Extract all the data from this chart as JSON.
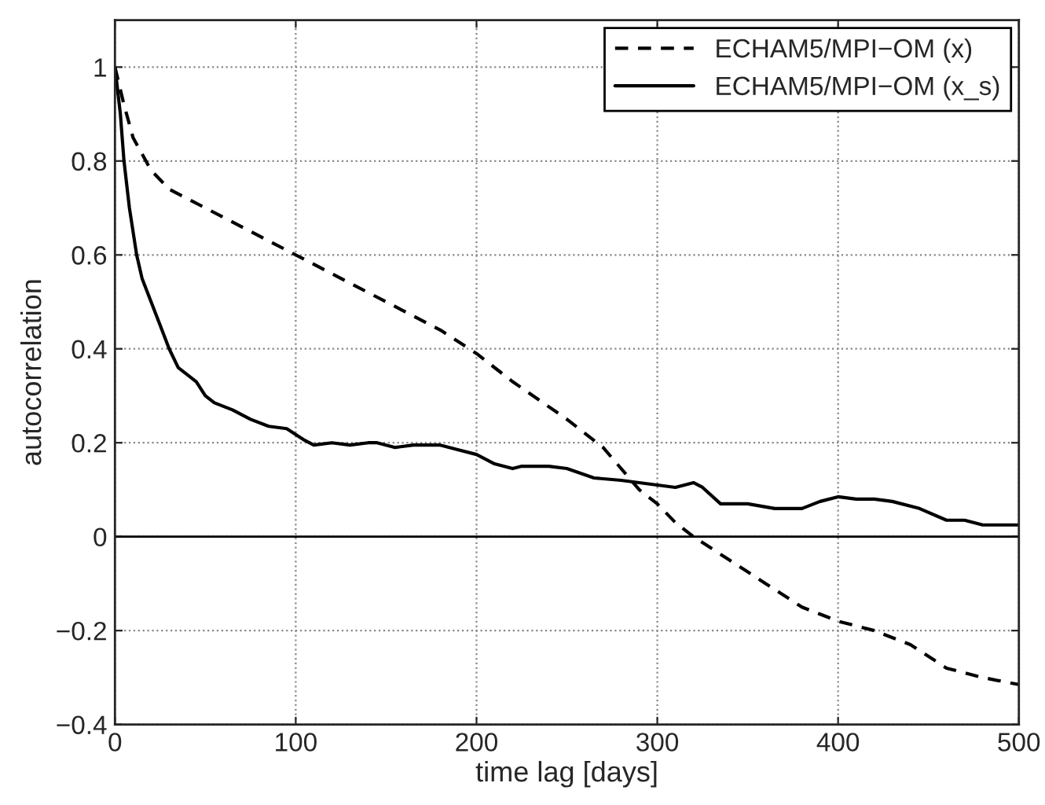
{
  "chart_data": {
    "type": "line",
    "xlabel": "time lag [days]",
    "ylabel": "autocorrelation",
    "xlim": [
      0,
      500
    ],
    "xticks": [
      0,
      100,
      200,
      300,
      400,
      500
    ],
    "ylim": [
      -0.4,
      1.1
    ],
    "yticks": [
      {
        "value": -0.4,
        "label": "−0.4"
      },
      {
        "value": -0.2,
        "label": "−0.2"
      },
      0,
      0.2,
      0.4,
      0.6,
      0.8,
      1
    ],
    "grid": true,
    "legend": "top right",
    "ref_lines": [
      {
        "axis": "y",
        "value": 0,
        "color": "#000000",
        "line_style": "solid"
      }
    ],
    "series": [
      {
        "name": "ECHAM5/MPI−OM (x)",
        "color": "#000000",
        "line_style": "dashed",
        "x": [
          0,
          5,
          10,
          20,
          30,
          40,
          60,
          80,
          100,
          120,
          150,
          180,
          200,
          220,
          250,
          270,
          290,
          300,
          310,
          320,
          340,
          360,
          380,
          400,
          420,
          440,
          460,
          480,
          500
        ],
        "values": [
          1,
          0.92,
          0.85,
          0.78,
          0.74,
          0.72,
          0.68,
          0.64,
          0.6,
          0.56,
          0.5,
          0.44,
          0.39,
          0.33,
          0.25,
          0.19,
          0.1,
          0.07,
          0.03,
          0,
          -0.05,
          -0.1,
          -0.15,
          -0.18,
          -0.2,
          -0.23,
          -0.28,
          -0.3,
          -0.315
        ]
      },
      {
        "name": "ECHAM5/MPI−OM (x_s)",
        "color": "#000000",
        "line_style": "solid",
        "x": [
          0,
          3,
          5,
          8,
          12,
          15,
          20,
          25,
          30,
          35,
          40,
          45,
          50,
          55,
          65,
          75,
          85,
          95,
          105,
          110,
          120,
          130,
          140,
          145,
          155,
          165,
          180,
          190,
          200,
          210,
          220,
          225,
          240,
          250,
          265,
          280,
          300,
          310,
          320,
          325,
          335,
          350,
          365,
          380,
          390,
          400,
          410,
          420,
          430,
          445,
          460,
          470,
          480,
          500
        ],
        "values": [
          1,
          0.9,
          0.8,
          0.7,
          0.6,
          0.55,
          0.5,
          0.45,
          0.4,
          0.36,
          0.345,
          0.33,
          0.3,
          0.285,
          0.27,
          0.25,
          0.235,
          0.23,
          0.205,
          0.195,
          0.2,
          0.195,
          0.2,
          0.2,
          0.19,
          0.195,
          0.195,
          0.185,
          0.175,
          0.155,
          0.145,
          0.15,
          0.15,
          0.145,
          0.125,
          0.12,
          0.11,
          0.105,
          0.115,
          0.105,
          0.07,
          0.07,
          0.06,
          0.06,
          0.075,
          0.085,
          0.08,
          0.08,
          0.075,
          0.06,
          0.035,
          0.035,
          0.025,
          0.025
        ]
      }
    ]
  }
}
